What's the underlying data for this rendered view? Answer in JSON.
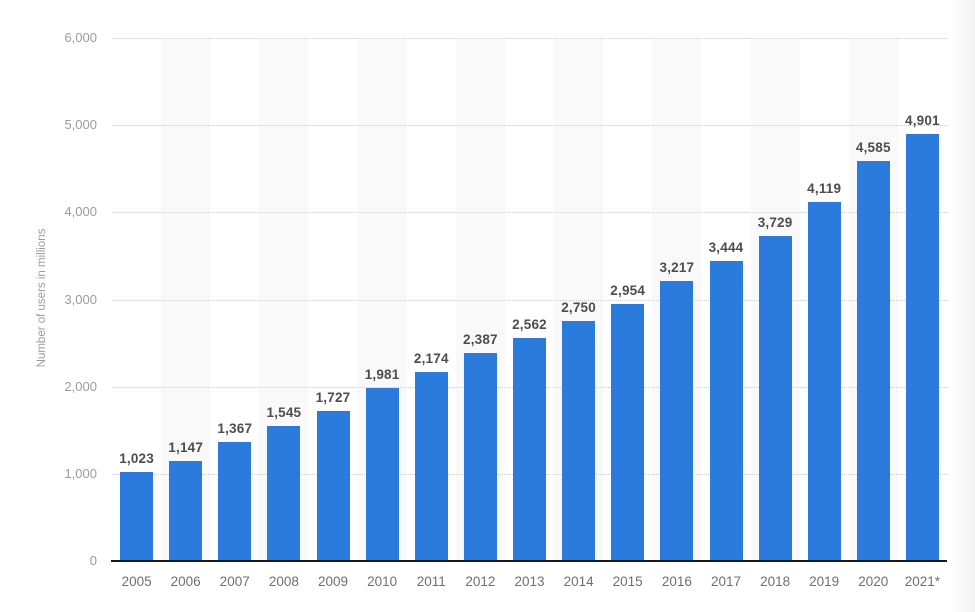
{
  "chart_data": {
    "type": "bar",
    "title": "",
    "xlabel": "",
    "ylabel": "Number of users in millions",
    "categories": [
      "2005",
      "2006",
      "2007",
      "2008",
      "2009",
      "2010",
      "2011",
      "2012",
      "2013",
      "2014",
      "2015",
      "2016",
      "2017",
      "2018",
      "2019",
      "2020",
      "2021*"
    ],
    "values": [
      1023,
      1147,
      1367,
      1545,
      1727,
      1981,
      2174,
      2387,
      2562,
      2750,
      2954,
      3217,
      3444,
      3729,
      4119,
      4585,
      4901
    ],
    "value_labels": [
      "1,023",
      "1,147",
      "1,367",
      "1,545",
      "1,727",
      "1,981",
      "2,174",
      "2,387",
      "2,562",
      "2,750",
      "2,954",
      "3,217",
      "3,444",
      "3,729",
      "4,119",
      "4,585",
      "4,901"
    ],
    "ylim": [
      0,
      6000
    ],
    "y_ticks": [
      {
        "value": 0,
        "label": "0"
      },
      {
        "value": 1000,
        "label": "1,000"
      },
      {
        "value": 2000,
        "label": "2,000"
      },
      {
        "value": 3000,
        "label": "3,000"
      },
      {
        "value": 4000,
        "label": "4,000"
      },
      {
        "value": 5000,
        "label": "5,000"
      },
      {
        "value": 6000,
        "label": "6,000"
      }
    ],
    "grid": "horizontal-dotted",
    "legend": "none",
    "band_pattern": "light band behind every second category column",
    "colors": {
      "bar": "#2b7bdc",
      "band": "#f9f9f9",
      "gridline": "#cccccc",
      "axis_line": "#191919",
      "value_label": "#4d4d4d",
      "x_tick": "#707070",
      "y_tick": "#9b9b9b",
      "background": "#ffffff"
    }
  }
}
